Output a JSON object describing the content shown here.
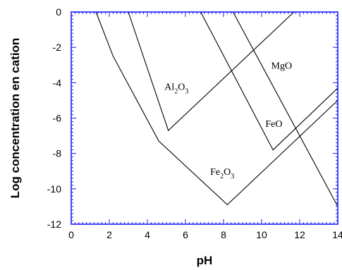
{
  "chart_data": {
    "type": "line",
    "xlabel": "pH",
    "ylabel": "Log concentration en cation",
    "xlim": [
      0,
      14
    ],
    "ylim": [
      -12,
      0
    ],
    "x_ticks": [
      0,
      2,
      4,
      6,
      8,
      10,
      12,
      14
    ],
    "y_ticks": [
      0,
      -2,
      -4,
      -6,
      -8,
      -10,
      -12
    ],
    "grid": false,
    "legend": "none",
    "frame_color": "#1c1cff",
    "line_color": "#000000",
    "series": [
      {
        "name": "Al2O3",
        "label": {
          "main": "Al",
          "sub1": "2",
          "mid": "O",
          "sub2": "3"
        },
        "label_at": [
          4.9,
          -4.4
        ],
        "points": [
          [
            3,
            0
          ],
          [
            5.1,
            -6.7
          ],
          [
            11.7,
            0
          ]
        ]
      },
      {
        "name": "Fe2O3",
        "label": {
          "main": "Fe",
          "sub1": "2",
          "mid": "O",
          "sub2": "3"
        },
        "label_at": [
          7.3,
          -9.2
        ],
        "points": [
          [
            1.3,
            0
          ],
          [
            2.2,
            -2.5
          ],
          [
            4.6,
            -7.3
          ],
          [
            8.2,
            -10.9
          ],
          [
            14,
            -5
          ]
        ]
      },
      {
        "name": "FeO",
        "label": {
          "main": "FeO"
        },
        "label_at": [
          10.2,
          -6.5
        ],
        "points": [
          [
            6.8,
            0
          ],
          [
            10.6,
            -7.8
          ],
          [
            14,
            -4.3
          ]
        ]
      },
      {
        "name": "MgO",
        "label": {
          "main": "MgO"
        },
        "label_at": [
          10.5,
          -3.2
        ],
        "points": [
          [
            8.5,
            0
          ],
          [
            14,
            -11
          ]
        ]
      }
    ]
  }
}
